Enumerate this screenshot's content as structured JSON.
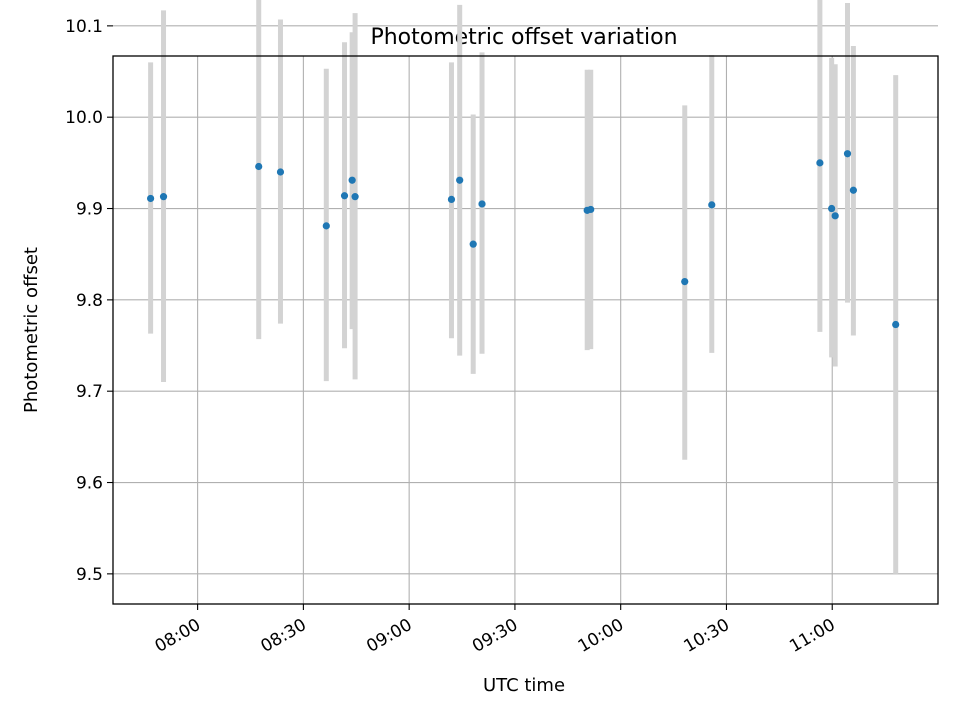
{
  "chart_data": {
    "type": "scatter",
    "title": "Photometric offset variation",
    "xlabel": "UTC time",
    "ylabel": "Photometric offset",
    "xlim": [
      "07:36",
      "11:30"
    ],
    "ylim": [
      9.467,
      10.067
    ],
    "xticks": [
      "08:00",
      "08:30",
      "09:00",
      "09:30",
      "10:00",
      "10:30",
      "11:00"
    ],
    "yticks": [
      9.5,
      9.6,
      9.7,
      9.8,
      9.9,
      10.0,
      10.1
    ],
    "ytick_labels": [
      "9.5",
      "9.6",
      "9.7",
      "9.8",
      "9.9",
      "10.0",
      "10.1"
    ],
    "grid": true,
    "marker_color": "#1f77b4",
    "errorbar_color": "#d3d3d3",
    "points": [
      {
        "t": "07:46:40",
        "y": 9.911,
        "ylo": 9.763,
        "yhi": 10.06
      },
      {
        "t": "07:50:20",
        "y": 9.913,
        "ylo": 9.71,
        "yhi": 10.117
      },
      {
        "t": "08:17:20",
        "y": 9.946,
        "ylo": 9.757,
        "yhi": 10.134
      },
      {
        "t": "08:23:30",
        "y": 9.94,
        "ylo": 9.774,
        "yhi": 10.107
      },
      {
        "t": "08:36:30",
        "y": 9.881,
        "ylo": 9.711,
        "yhi": 10.053
      },
      {
        "t": "08:41:40",
        "y": 9.914,
        "ylo": 9.747,
        "yhi": 10.082
      },
      {
        "t": "08:43:50",
        "y": 9.931,
        "ylo": 9.768,
        "yhi": 10.093
      },
      {
        "t": "08:44:40",
        "y": 9.913,
        "ylo": 9.713,
        "yhi": 10.114
      },
      {
        "t": "09:12:00",
        "y": 9.91,
        "ylo": 9.758,
        "yhi": 10.06
      },
      {
        "t": "09:14:20",
        "y": 9.931,
        "ylo": 9.739,
        "yhi": 10.123
      },
      {
        "t": "09:18:10",
        "y": 9.861,
        "ylo": 9.719,
        "yhi": 10.003
      },
      {
        "t": "09:20:40",
        "y": 9.905,
        "ylo": 9.741,
        "yhi": 10.071
      },
      {
        "t": "09:50:30",
        "y": 9.898,
        "ylo": 9.745,
        "yhi": 10.052
      },
      {
        "t": "09:51:30",
        "y": 9.899,
        "ylo": 9.746,
        "yhi": 10.052
      },
      {
        "t": "10:18:10",
        "y": 9.82,
        "ylo": 9.625,
        "yhi": 10.013
      },
      {
        "t": "10:25:50",
        "y": 9.904,
        "ylo": 9.742,
        "yhi": 10.068
      },
      {
        "t": "10:56:30",
        "y": 9.95,
        "ylo": 9.765,
        "yhi": 10.134
      },
      {
        "t": "10:59:50",
        "y": 9.9,
        "ylo": 9.737,
        "yhi": 10.065
      },
      {
        "t": "11:00:50",
        "y": 9.892,
        "ylo": 9.727,
        "yhi": 10.058
      },
      {
        "t": "11:04:20",
        "y": 9.96,
        "ylo": 9.797,
        "yhi": 10.125
      },
      {
        "t": "11:06:00",
        "y": 9.92,
        "ylo": 9.761,
        "yhi": 10.078
      },
      {
        "t": "11:18:00",
        "y": 9.773,
        "ylo": 9.5,
        "yhi": 10.046
      }
    ]
  }
}
